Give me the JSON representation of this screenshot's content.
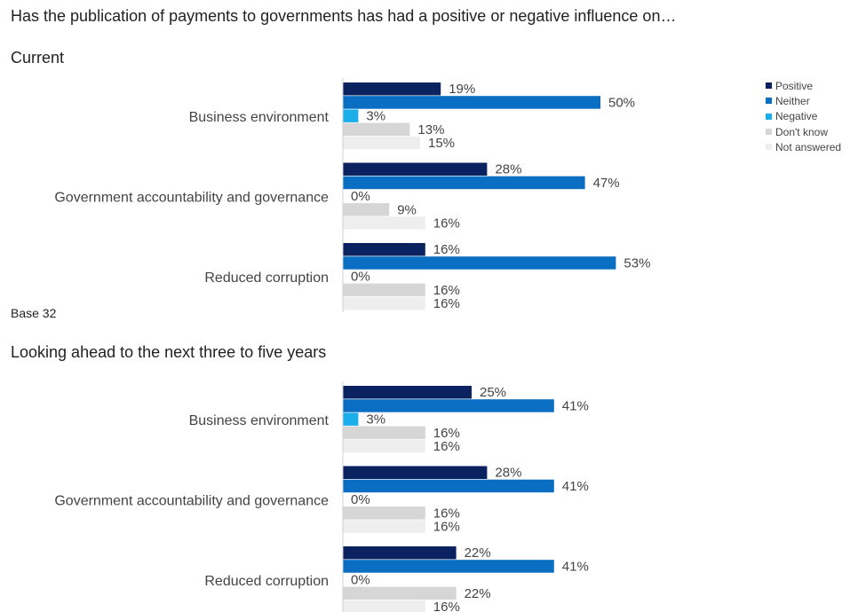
{
  "page": {
    "title": "Has the publication of payments to governments has had a positive or negative influence on…",
    "base_note": "Base 32"
  },
  "legend": [
    {
      "name": "Positive",
      "color": "#0b2260"
    },
    {
      "name": "Neither",
      "color": "#0a6fc2"
    },
    {
      "name": "Negative",
      "color": "#1aaeeb"
    },
    {
      "name": "Don't know",
      "color": "#d6d6d6"
    },
    {
      "name": "Not answered",
      "color": "#eeeeee"
    }
  ],
  "chart_data": [
    {
      "type": "bar",
      "orientation": "horizontal",
      "title": "Current",
      "categories": [
        "Business environment",
        "Government accountability and governance",
        "Reduced corruption"
      ],
      "series": [
        {
          "name": "Positive",
          "values": [
            19,
            28,
            16
          ]
        },
        {
          "name": "Neither",
          "values": [
            50,
            47,
            53
          ]
        },
        {
          "name": "Negative",
          "values": [
            3,
            0,
            0
          ]
        },
        {
          "name": "Don't know",
          "values": [
            13,
            9,
            16
          ]
        },
        {
          "name": "Not answered",
          "values": [
            15,
            16,
            16
          ]
        }
      ],
      "value_suffix": "%",
      "legend_position": "top-right",
      "grid": false
    },
    {
      "type": "bar",
      "orientation": "horizontal",
      "title": "Looking ahead to the next three to five years",
      "categories": [
        "Business environment",
        "Government accountability and governance",
        "Reduced corruption"
      ],
      "series": [
        {
          "name": "Positive",
          "values": [
            25,
            28,
            22
          ]
        },
        {
          "name": "Neither",
          "values": [
            41,
            41,
            41
          ]
        },
        {
          "name": "Negative",
          "values": [
            3,
            0,
            0
          ]
        },
        {
          "name": "Don't know",
          "values": [
            16,
            16,
            22
          ]
        },
        {
          "name": "Not answered",
          "values": [
            16,
            16,
            16
          ]
        }
      ],
      "value_suffix": "%",
      "grid": false
    }
  ]
}
